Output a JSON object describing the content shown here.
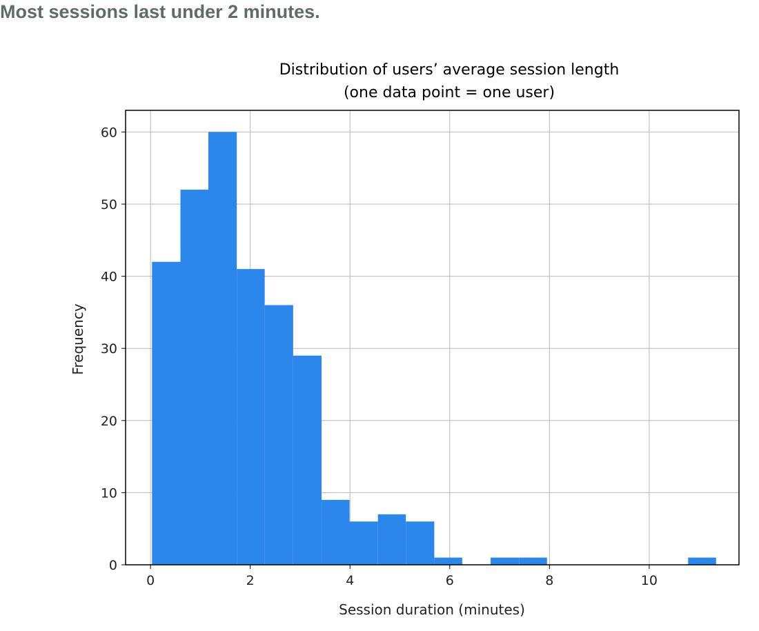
{
  "headline": "Most sessions last under 2 minutes.",
  "chart_data": {
    "type": "bar",
    "title": "Distribution of users’ average session length",
    "subtitle": "(one data point = one user)",
    "xlabel": "Session duration (minutes)",
    "ylabel": "Frequency",
    "xlim": [
      -0.5,
      11.8
    ],
    "ylim": [
      0,
      63
    ],
    "x_ticks": [
      0,
      2,
      4,
      6,
      8,
      10
    ],
    "y_ticks": [
      0,
      10,
      20,
      30,
      40,
      50,
      60
    ],
    "grid": true,
    "bar_color": "#2c87ed",
    "bins": [
      {
        "x0": 0.03,
        "x1": 0.6,
        "value": 42
      },
      {
        "x0": 0.6,
        "x1": 1.16,
        "value": 52
      },
      {
        "x0": 1.16,
        "x1": 1.73,
        "value": 60
      },
      {
        "x0": 1.73,
        "x1": 2.29,
        "value": 41
      },
      {
        "x0": 2.29,
        "x1": 2.86,
        "value": 36
      },
      {
        "x0": 2.86,
        "x1": 3.43,
        "value": 29
      },
      {
        "x0": 3.43,
        "x1": 3.99,
        "value": 9
      },
      {
        "x0": 3.99,
        "x1": 4.56,
        "value": 6
      },
      {
        "x0": 4.56,
        "x1": 5.12,
        "value": 7
      },
      {
        "x0": 5.12,
        "x1": 5.69,
        "value": 6
      },
      {
        "x0": 5.69,
        "x1": 6.25,
        "value": 1
      },
      {
        "x0": 6.25,
        "x1": 6.82,
        "value": 0
      },
      {
        "x0": 6.82,
        "x1": 7.39,
        "value": 1
      },
      {
        "x0": 7.39,
        "x1": 7.95,
        "value": 1
      },
      {
        "x0": 7.95,
        "x1": 8.52,
        "value": 0
      },
      {
        "x0": 8.52,
        "x1": 9.08,
        "value": 0
      },
      {
        "x0": 9.08,
        "x1": 9.65,
        "value": 0
      },
      {
        "x0": 9.65,
        "x1": 10.21,
        "value": 0
      },
      {
        "x0": 10.21,
        "x1": 10.78,
        "value": 0
      },
      {
        "x0": 10.78,
        "x1": 11.34,
        "value": 1
      }
    ]
  }
}
